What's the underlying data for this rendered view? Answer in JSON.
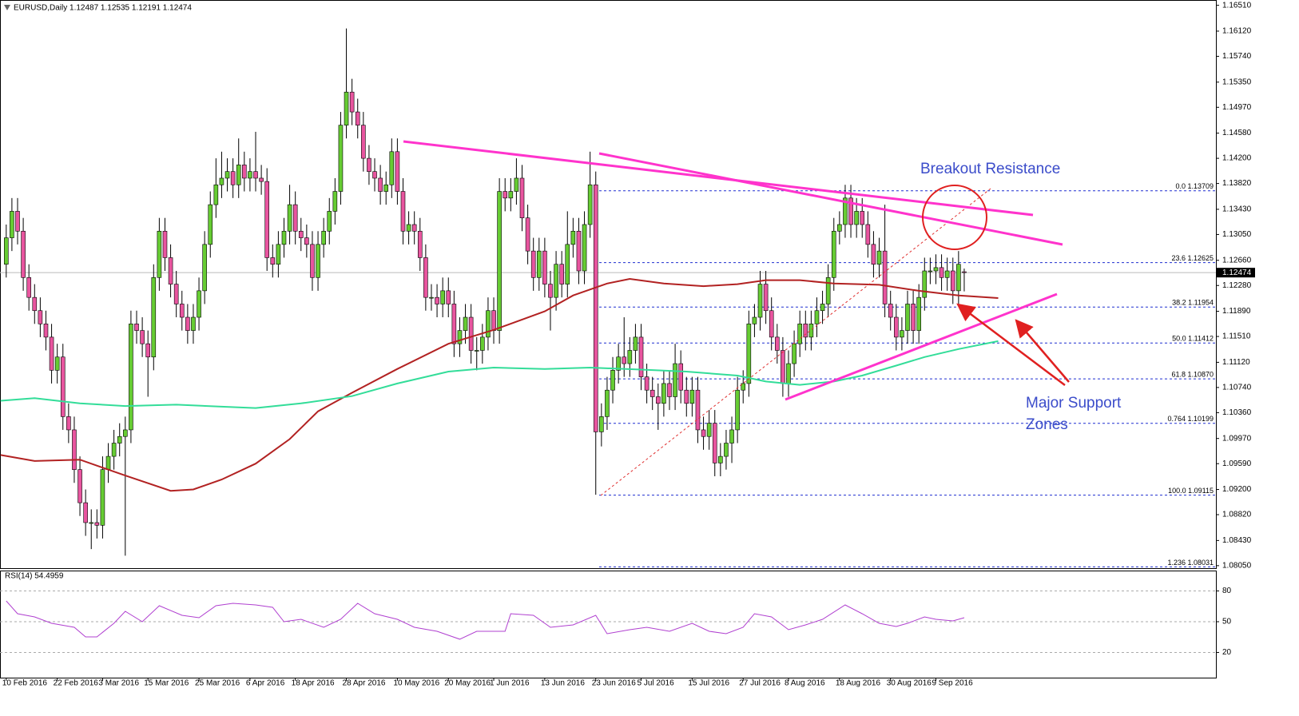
{
  "chart_data": [
    {
      "type": "candlestick",
      "header": "EURUSD,Daily 1.12487 1.12535 1.12191 1.12474",
      "up_color": "#66cc33",
      "down_color": "#e8559f",
      "xlim": [
        -1.1,
        213.4
      ],
      "ylim": [
        1.08,
        1.1659
      ],
      "yticks": [
        {
          "value": 1.1651,
          "label": "1.16510"
        },
        {
          "value": 1.1612,
          "label": "1.16120"
        },
        {
          "value": 1.1574,
          "label": "1.15740"
        },
        {
          "value": 1.1535,
          "label": "1.15350"
        },
        {
          "value": 1.1497,
          "label": "1.14970"
        },
        {
          "value": 1.1458,
          "label": "1.14580"
        },
        {
          "value": 1.142,
          "label": "1.14200"
        },
        {
          "value": 1.1382,
          "label": "1.13820"
        },
        {
          "value": 1.1343,
          "label": "1.13430"
        },
        {
          "value": 1.1305,
          "label": "1.13050"
        },
        {
          "value": 1.1266,
          "label": "1.12660"
        },
        {
          "value": 1.1228,
          "label": "1.12280"
        },
        {
          "value": 1.1189,
          "label": "1.11890"
        },
        {
          "value": 1.1151,
          "label": "1.11510"
        },
        {
          "value": 1.1112,
          "label": "1.11120"
        },
        {
          "value": 1.1074,
          "label": "1.10740"
        },
        {
          "value": 1.1036,
          "label": "1.10360"
        },
        {
          "value": 1.0997,
          "label": "1.09970"
        },
        {
          "value": 1.0959,
          "label": "1.09590"
        },
        {
          "value": 1.092,
          "label": "1.09200"
        },
        {
          "value": 1.0882,
          "label": "1.08820"
        },
        {
          "value": 1.0843,
          "label": "1.08430"
        },
        {
          "value": 1.0805,
          "label": "1.08050"
        }
      ],
      "xticks": [
        {
          "value": 0,
          "label": "10 Feb 2016"
        },
        {
          "value": 9,
          "label": "22 Feb 2016"
        },
        {
          "value": 17,
          "label": "3 Mar 2016"
        },
        {
          "value": 25,
          "label": "15 Mar 2016"
        },
        {
          "value": 34,
          "label": "25 Mar 2016"
        },
        {
          "value": 43,
          "label": "6 Apr 2016"
        },
        {
          "value": 51,
          "label": "18 Apr 2016"
        },
        {
          "value": 60,
          "label": "28 Apr 2016"
        },
        {
          "value": 69,
          "label": "10 May 2016"
        },
        {
          "value": 78,
          "label": "20 May 2016"
        },
        {
          "value": 86,
          "label": "1 Jun 2016"
        },
        {
          "value": 95,
          "label": "13 Jun 2016"
        },
        {
          "value": 104,
          "label": "23 Jun 2016"
        },
        {
          "value": 112,
          "label": "5 Jul 2016"
        },
        {
          "value": 121,
          "label": "15 Jul 2016"
        },
        {
          "value": 130,
          "label": "27 Jul 2016"
        },
        {
          "value": 138,
          "label": "8 Aug 2016"
        },
        {
          "value": 147,
          "label": "18 Aug 2016"
        },
        {
          "value": 156,
          "label": "30 Aug 2016"
        },
        {
          "value": 164,
          "label": "9 Sep 2016"
        }
      ],
      "open": [
        1.126,
        1.13,
        1.134,
        1.131,
        1.124,
        1.121,
        1.119,
        1.117,
        1.115,
        1.11,
        1.112,
        1.103,
        1.101,
        1.095,
        1.09,
        1.087,
        1.087,
        1.0866,
        1.095,
        1.097,
        1.099,
        1.1,
        1.101,
        1.117,
        1.116,
        1.114,
        1.112,
        1.124,
        1.131,
        1.127,
        1.123,
        1.12,
        1.118,
        1.116,
        1.118,
        1.122,
        1.129,
        1.135,
        1.138,
        1.139,
        1.14,
        1.138,
        1.141,
        1.139,
        1.14,
        1.139,
        1.1385,
        1.127,
        1.126,
        1.129,
        1.131,
        1.135,
        1.131,
        1.13,
        1.129,
        1.124,
        1.129,
        1.131,
        1.134,
        1.137,
        1.147,
        1.152,
        1.149,
        1.147,
        1.142,
        1.14,
        1.139,
        1.137,
        1.138,
        1.143,
        1.137,
        1.131,
        1.132,
        1.131,
        1.127,
        1.121,
        1.121,
        1.12,
        1.122,
        1.12,
        1.114,
        1.116,
        1.118,
        1.113,
        1.113,
        1.115,
        1.119,
        1.116,
        1.137,
        1.136,
        1.137,
        1.139,
        1.133,
        1.128,
        1.124,
        1.128,
        1.123,
        1.121,
        1.126,
        1.123,
        1.129,
        1.131,
        1.125,
        1.132,
        1.138,
        1.1007,
        1.103,
        1.107,
        1.11,
        1.112,
        1.111,
        1.113,
        1.115,
        1.109,
        1.107,
        1.106,
        1.105,
        1.108,
        1.106,
        1.111,
        1.107,
        1.105,
        1.107,
        1.101,
        1.1,
        1.102,
        1.096,
        1.097,
        1.099,
        1.101,
        1.107,
        1.108,
        1.117,
        1.118,
        1.123,
        1.119,
        1.115,
        1.113,
        1.108,
        1.111,
        1.114,
        1.117,
        1.115,
        1.117,
        1.119,
        1.12,
        1.124,
        1.131,
        1.132,
        1.136,
        1.132,
        1.134,
        1.132,
        1.129,
        1.126,
        1.128,
        1.12,
        1.118,
        1.115,
        1.116,
        1.12,
        1.116,
        1.121,
        1.125,
        1.125,
        1.1255,
        1.124,
        1.125,
        1.122,
        1.12487
      ],
      "high": [
        1.132,
        1.136,
        1.136,
        1.133,
        1.126,
        1.123,
        1.121,
        1.119,
        1.117,
        1.114,
        1.114,
        1.105,
        1.103,
        1.097,
        1.092,
        1.089,
        1.089,
        1.097,
        1.099,
        1.101,
        1.102,
        1.103,
        1.119,
        1.119,
        1.118,
        1.116,
        1.126,
        1.133,
        1.133,
        1.129,
        1.125,
        1.122,
        1.12,
        1.12,
        1.124,
        1.131,
        1.137,
        1.142,
        1.143,
        1.142,
        1.142,
        1.145,
        1.143,
        1.142,
        1.146,
        1.141,
        1.1405,
        1.129,
        1.131,
        1.133,
        1.138,
        1.137,
        1.133,
        1.132,
        1.131,
        1.131,
        1.133,
        1.136,
        1.139,
        1.149,
        1.1616,
        1.154,
        1.151,
        1.149,
        1.144,
        1.142,
        1.141,
        1.14,
        1.145,
        1.145,
        1.139,
        1.134,
        1.134,
        1.133,
        1.129,
        1.123,
        1.123,
        1.124,
        1.124,
        1.122,
        1.118,
        1.12,
        1.12,
        1.115,
        1.117,
        1.121,
        1.121,
        1.139,
        1.139,
        1.139,
        1.142,
        1.141,
        1.135,
        1.13,
        1.13,
        1.13,
        1.125,
        1.128,
        1.128,
        1.134,
        1.133,
        1.133,
        1.134,
        1.143,
        1.14,
        1.105,
        1.109,
        1.112,
        1.114,
        1.118,
        1.115,
        1.117,
        1.117,
        1.111,
        1.109,
        1.108,
        1.11,
        1.11,
        1.114,
        1.113,
        1.109,
        1.109,
        1.109,
        1.103,
        1.104,
        1.104,
        1.099,
        1.101,
        1.103,
        1.109,
        1.11,
        1.119,
        1.12,
        1.125,
        1.125,
        1.121,
        1.117,
        1.115,
        1.113,
        1.116,
        1.119,
        1.119,
        1.119,
        1.121,
        1.122,
        1.126,
        1.133,
        1.134,
        1.138,
        1.138,
        1.136,
        1.136,
        1.134,
        1.131,
        1.13,
        1.135,
        1.122,
        1.12,
        1.118,
        1.122,
        1.122,
        1.123,
        1.127,
        1.127,
        1.1275,
        1.1275,
        1.127,
        1.127,
        1.128,
        1.12535
      ],
      "low": [
        1.124,
        1.128,
        1.129,
        1.122,
        1.119,
        1.117,
        1.115,
        1.113,
        1.108,
        1.108,
        1.101,
        1.099,
        1.093,
        1.088,
        1.085,
        1.083,
        1.0846,
        1.0846,
        1.093,
        1.095,
        1.097,
        1.082,
        1.099,
        1.114,
        1.112,
        1.106,
        1.11,
        1.122,
        1.125,
        1.121,
        1.118,
        1.116,
        1.114,
        1.114,
        1.116,
        1.12,
        1.127,
        1.133,
        1.136,
        1.137,
        1.136,
        1.136,
        1.137,
        1.137,
        1.137,
        1.1365,
        1.125,
        1.124,
        1.124,
        1.127,
        1.129,
        1.129,
        1.128,
        1.127,
        1.122,
        1.122,
        1.127,
        1.129,
        1.132,
        1.135,
        1.145,
        1.147,
        1.145,
        1.14,
        1.138,
        1.137,
        1.135,
        1.135,
        1.136,
        1.135,
        1.129,
        1.129,
        1.129,
        1.125,
        1.119,
        1.119,
        1.118,
        1.118,
        1.118,
        1.112,
        1.112,
        1.114,
        1.111,
        1.11,
        1.111,
        1.113,
        1.114,
        1.114,
        1.134,
        1.134,
        1.135,
        1.131,
        1.126,
        1.122,
        1.122,
        1.121,
        1.116,
        1.119,
        1.121,
        1.121,
        1.127,
        1.123,
        1.123,
        1.13,
        1.0912,
        1.0985,
        1.101,
        1.105,
        1.108,
        1.109,
        1.109,
        1.111,
        1.107,
        1.105,
        1.104,
        1.101,
        1.103,
        1.104,
        1.104,
        1.105,
        1.103,
        1.103,
        1.099,
        1.098,
        1.098,
        1.094,
        1.094,
        1.095,
        1.096,
        1.099,
        1.105,
        1.106,
        1.115,
        1.116,
        1.117,
        1.113,
        1.111,
        1.106,
        1.106,
        1.109,
        1.112,
        1.113,
        1.113,
        1.115,
        1.117,
        1.118,
        1.122,
        1.129,
        1.13,
        1.13,
        1.13,
        1.13,
        1.127,
        1.124,
        1.124,
        1.118,
        1.116,
        1.113,
        1.113,
        1.114,
        1.114,
        1.114,
        1.119,
        1.123,
        1.123,
        1.122,
        1.122,
        1.12,
        1.12,
        1.12191
      ],
      "close": [
        1.13,
        1.134,
        1.131,
        1.124,
        1.121,
        1.119,
        1.117,
        1.115,
        1.11,
        1.112,
        1.103,
        1.101,
        1.095,
        1.09,
        1.087,
        1.087,
        1.0866,
        1.095,
        1.097,
        1.099,
        1.1,
        1.101,
        1.117,
        1.116,
        1.114,
        1.112,
        1.124,
        1.131,
        1.127,
        1.123,
        1.12,
        1.118,
        1.116,
        1.118,
        1.122,
        1.129,
        1.135,
        1.138,
        1.139,
        1.14,
        1.138,
        1.141,
        1.139,
        1.14,
        1.139,
        1.1385,
        1.127,
        1.126,
        1.129,
        1.131,
        1.135,
        1.131,
        1.13,
        1.129,
        1.124,
        1.129,
        1.131,
        1.134,
        1.137,
        1.147,
        1.152,
        1.149,
        1.147,
        1.142,
        1.14,
        1.139,
        1.137,
        1.138,
        1.143,
        1.137,
        1.131,
        1.132,
        1.131,
        1.127,
        1.121,
        1.121,
        1.12,
        1.122,
        1.12,
        1.114,
        1.116,
        1.118,
        1.113,
        1.113,
        1.115,
        1.119,
        1.116,
        1.137,
        1.136,
        1.137,
        1.139,
        1.133,
        1.128,
        1.124,
        1.128,
        1.123,
        1.121,
        1.126,
        1.123,
        1.129,
        1.131,
        1.125,
        1.132,
        1.138,
        1.1007,
        1.103,
        1.107,
        1.11,
        1.112,
        1.111,
        1.113,
        1.115,
        1.109,
        1.107,
        1.106,
        1.105,
        1.108,
        1.106,
        1.111,
        1.107,
        1.105,
        1.107,
        1.101,
        1.1,
        1.102,
        1.096,
        1.097,
        1.099,
        1.101,
        1.107,
        1.108,
        1.117,
        1.118,
        1.123,
        1.119,
        1.115,
        1.113,
        1.108,
        1.111,
        1.114,
        1.117,
        1.115,
        1.117,
        1.119,
        1.12,
        1.124,
        1.131,
        1.132,
        1.136,
        1.132,
        1.134,
        1.132,
        1.129,
        1.126,
        1.128,
        1.12,
        1.118,
        1.115,
        1.116,
        1.12,
        1.116,
        1.121,
        1.125,
        1.125,
        1.1255,
        1.124,
        1.125,
        1.122,
        1.126,
        1.12474
      ],
      "series": [
        {
          "color": "#b22222",
          "x": [
            -1,
            5,
            13,
            21,
            29,
            33,
            38,
            44,
            50,
            55,
            61,
            69,
            78,
            86,
            95,
            100,
            106,
            110,
            116,
            123,
            129,
            134,
            140,
            146,
            154,
            161,
            168,
            175
          ],
          "values": [
            1.0972,
            1.0963,
            1.0965,
            1.0941,
            1.0918,
            1.092,
            1.0935,
            1.0959,
            1.0996,
            1.1038,
            1.1066,
            1.1102,
            1.114,
            1.1161,
            1.1189,
            1.1213,
            1.1231,
            1.1238,
            1.1231,
            1.1227,
            1.123,
            1.1236,
            1.1236,
            1.1231,
            1.1229,
            1.122,
            1.1213,
            1.1209
          ]
        },
        {
          "color": "#33dd99",
          "x": [
            -1,
            5,
            13,
            21,
            30,
            38,
            44,
            52,
            61,
            69,
            78,
            86,
            95,
            103,
            112,
            120,
            129,
            134,
            140,
            146,
            151,
            157,
            162,
            168,
            175
          ],
          "values": [
            1.1054,
            1.1058,
            1.105,
            1.1046,
            1.1048,
            1.1045,
            1.1043,
            1.105,
            1.1061,
            1.108,
            1.1098,
            1.1104,
            1.1102,
            1.1104,
            1.1101,
            1.1098,
            1.1092,
            1.1083,
            1.1078,
            1.1083,
            1.1092,
            1.1107,
            1.112,
            1.1132,
            1.1144
          ]
        }
      ],
      "fib_color": "#1f2fd0",
      "fib_levels": [
        {
          "value": 1.13709,
          "label": "0.0 1.13709"
        },
        {
          "value": 1.12625,
          "label": "23.6 1.12625"
        },
        {
          "value": 1.11954,
          "label": "38.2 1.11954"
        },
        {
          "value": 1.11412,
          "label": "50.0 1.11412"
        },
        {
          "value": 1.1087,
          "label": "61.8 1.10870"
        },
        {
          "value": 1.10199,
          "label": "0.764 1.10199"
        },
        {
          "value": 1.09115,
          "label": "100.0 1.09115"
        },
        {
          "value": 1.08031,
          "label": "1.236 1.08031"
        }
      ],
      "last_price": 1.12474,
      "annotations": [
        "Breakout Resistance",
        "Major Support",
        "Zones"
      ]
    },
    {
      "type": "line",
      "title": "RSI(14) 54.4959",
      "color": "#b040d0",
      "xlim": [
        -1.1,
        213.4
      ],
      "ylim": [
        -4.6,
        99.9
      ],
      "yticks": [
        20,
        50,
        80
      ],
      "x": [
        0,
        2,
        5,
        8,
        12,
        14,
        16,
        19,
        21,
        24,
        27,
        31,
        34,
        37,
        40,
        44,
        47,
        49,
        52,
        56,
        59,
        62,
        65,
        69,
        72,
        76,
        80,
        83,
        88,
        89,
        93,
        96,
        100,
        104,
        106,
        110,
        113,
        117,
        121,
        124,
        127,
        130,
        132,
        135,
        138,
        141,
        144,
        148,
        151,
        154,
        157,
        159,
        162,
        164,
        167,
        169
      ],
      "values": [
        70.3,
        57.8,
        54.7,
        48.4,
        44.5,
        35.2,
        35.2,
        48.4,
        60.1,
        50,
        65.6,
        56.2,
        53.9,
        65.6,
        67.9,
        66.4,
        64,
        50,
        52.3,
        44.5,
        52.3,
        67.9,
        57.8,
        52.3,
        44.5,
        40.6,
        32.9,
        40.6,
        40.6,
        57.8,
        56.2,
        44.5,
        46.9,
        56.2,
        38.3,
        42.2,
        44.5,
        40.6,
        48.4,
        40.6,
        38.3,
        44.5,
        57.8,
        54.7,
        42.2,
        46.9,
        52.3,
        66.4,
        57.8,
        48.4,
        45.3,
        48.4,
        54.7,
        52.3,
        50.8,
        53.9
      ]
    }
  ]
}
